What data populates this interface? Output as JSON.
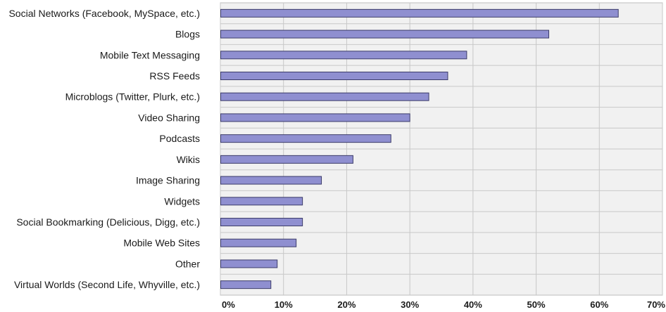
{
  "chart_data": {
    "type": "bar",
    "orientation": "horizontal",
    "categories": [
      "Social Networks (Facebook, MySpace, etc.)",
      "Blogs",
      "Mobile Text Messaging",
      "RSS Feeds",
      "Microblogs (Twitter, Plurk, etc.)",
      "Video Sharing",
      "Podcasts",
      "Wikis",
      "Image Sharing",
      "Widgets",
      "Social Bookmarking (Delicious, Digg, etc.)",
      "Mobile Web Sites",
      "Other",
      "Virtual Worlds (Second Life, Whyville, etc.)"
    ],
    "values": [
      63,
      52,
      39,
      36,
      33,
      30,
      27,
      21,
      16,
      13,
      13,
      12,
      9,
      8
    ],
    "xlim": [
      0,
      70
    ],
    "xticks": [
      0,
      10,
      20,
      30,
      40,
      50,
      60,
      70
    ],
    "xtick_labels": [
      "0%",
      "10%",
      "20%",
      "30%",
      "40%",
      "50%",
      "60%",
      "70%"
    ],
    "grid": true,
    "colors": {
      "bar_fill": "#8f8fd0",
      "bar_stroke": "#3c3c6a",
      "plot_bg": "#f1f1f1",
      "grid": "#c8c8c8"
    }
  }
}
